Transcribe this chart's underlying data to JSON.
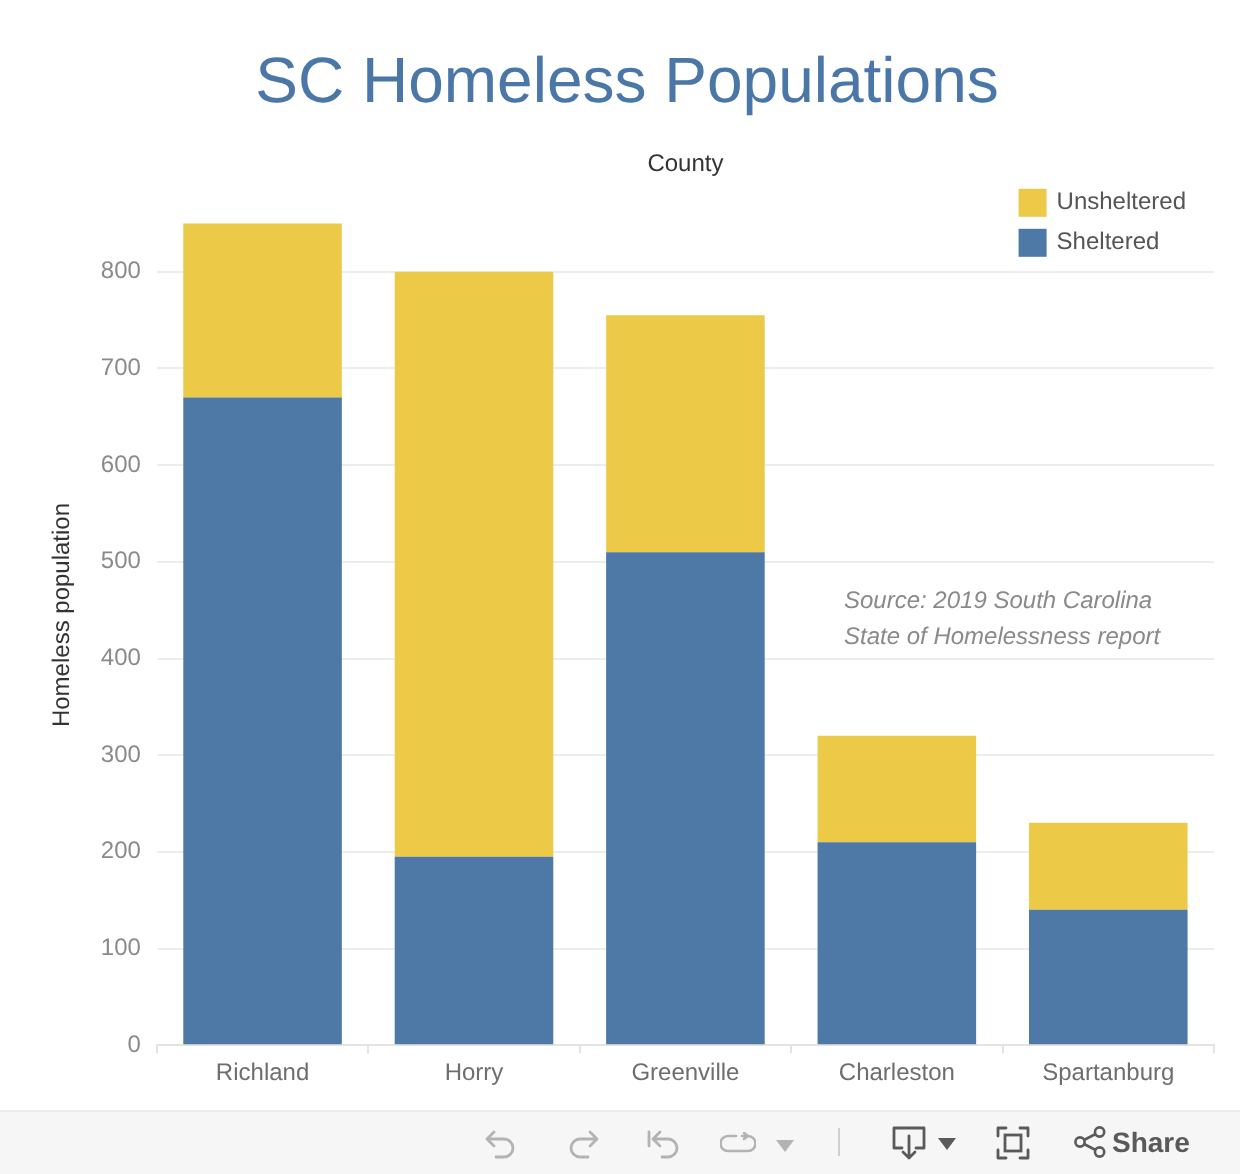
{
  "chart_data": {
    "type": "bar",
    "title": "SC Homeless Populations",
    "xlabel": "County",
    "ylabel": "Homeless population",
    "categories": [
      "Richland",
      "Horry",
      "Greenville",
      "Charleston",
      "Spartanburg"
    ],
    "series": [
      {
        "name": "Sheltered",
        "color": "#4e79a7",
        "values": [
          670,
          195,
          510,
          210,
          140
        ]
      },
      {
        "name": "Unsheltered",
        "color": "#edc948",
        "values": [
          180,
          605,
          245,
          110,
          90
        ]
      }
    ],
    "stacked": true,
    "ylim": [
      0,
      890
    ],
    "yticks": [
      0,
      100,
      200,
      300,
      400,
      500,
      600,
      700,
      800
    ],
    "grid": "y",
    "legend": "top right",
    "annotations": [
      "Source: 2019 South Carolina\nState of Homelessness report",
      "Share"
    ]
  }
}
